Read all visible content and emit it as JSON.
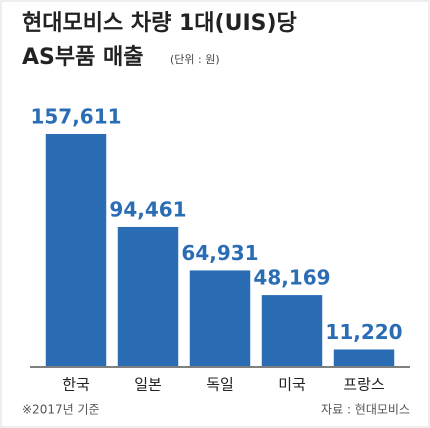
{
  "chart_data": {
    "type": "bar",
    "title": "현대모비스 차량 1대(UIS)당",
    "subtitle": "AS부품 매출",
    "unit": "(단위 : 원)",
    "categories": [
      "한국",
      "일본",
      "독일",
      "미국",
      "프랑스"
    ],
    "values": [
      157611,
      94461,
      64931,
      48169,
      11220
    ],
    "value_labels": [
      "157,611",
      "94,461",
      "64,931",
      "48,169",
      "11,220"
    ],
    "color": "#2b6db5",
    "note": "※2017년 기준",
    "source": "자료 : 현대모비스"
  }
}
